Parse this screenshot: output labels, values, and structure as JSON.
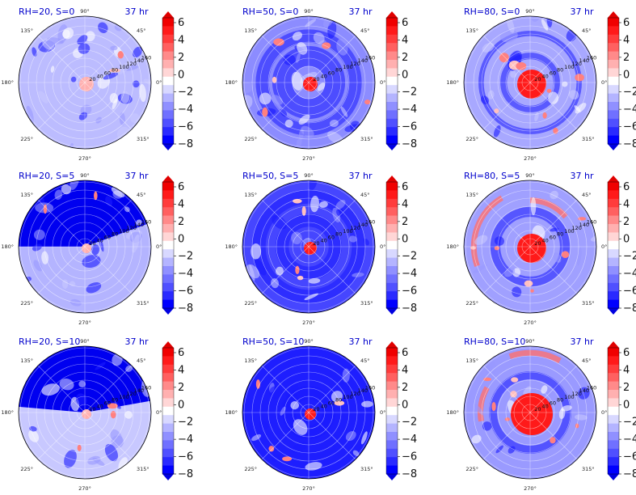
{
  "figure": {
    "time_label": "37 hr",
    "angle_labels": [
      "90°",
      "45°",
      "0°",
      "315°",
      "270°",
      "225°",
      "180°",
      "135°"
    ],
    "radial_ticks": [
      "20",
      "40",
      "60",
      "80",
      "100",
      "120",
      "140",
      "160"
    ]
  },
  "colorbar": {
    "ticks": [
      "6",
      "4",
      "2",
      "0",
      "−2",
      "−4",
      "−6",
      "−8"
    ],
    "colors": [
      "#0000ff",
      "#2a2aff",
      "#5050ff",
      "#7070ff",
      "#9090ff",
      "#b4b4ff",
      "#d8d8ff",
      "#ffffff",
      "#ffd6d6",
      "#ffb0b0",
      "#ff8a8a",
      "#ff6060",
      "#ff3c3c",
      "#ff1a1a",
      "#f00000"
    ]
  },
  "chart_data": [
    {
      "type": "heatmap",
      "title": "RH=20, S=0",
      "time": "37 hr",
      "theta_ticks_deg": [
        0,
        45,
        90,
        135,
        180,
        225,
        270,
        315
      ],
      "r_ticks": [
        20,
        40,
        60,
        80,
        100,
        120,
        140,
        160
      ],
      "cbar_range": [
        -8,
        7
      ],
      "pattern": "uniform light blue, weak center"
    },
    {
      "type": "heatmap",
      "title": "RH=50, S=0",
      "time": "37 hr",
      "theta_ticks_deg": [
        0,
        45,
        90,
        135,
        180,
        225,
        270,
        315
      ],
      "r_ticks": [
        20,
        40,
        60,
        80,
        100,
        120,
        140,
        160
      ],
      "cbar_range": [
        -8,
        7
      ],
      "pattern": "blue spiral, small red core"
    },
    {
      "type": "heatmap",
      "title": "RH=80, S=0",
      "time": "37 hr",
      "theta_ticks_deg": [
        0,
        45,
        90,
        135,
        180,
        225,
        270,
        315
      ],
      "r_ticks": [
        20,
        40,
        60,
        80,
        100,
        120,
        140,
        160
      ],
      "cbar_range": [
        -8,
        7
      ],
      "pattern": "strong red core, blue rings"
    },
    {
      "type": "heatmap",
      "title": "RH=20, S=5",
      "time": "37 hr",
      "theta_ticks_deg": [
        0,
        45,
        90,
        135,
        180,
        225,
        270,
        315
      ],
      "r_ticks": [
        20,
        40,
        60,
        80,
        100,
        120,
        140,
        160
      ],
      "cbar_range": [
        -8,
        7
      ],
      "pattern": "dark blue upper half, light lower"
    },
    {
      "type": "heatmap",
      "title": "RH=50, S=5",
      "time": "37 hr",
      "theta_ticks_deg": [
        0,
        45,
        90,
        135,
        180,
        225,
        270,
        315
      ],
      "r_ticks": [
        20,
        40,
        60,
        80,
        100,
        120,
        140,
        160
      ],
      "cbar_range": [
        -8,
        7
      ],
      "pattern": "dark blue spiral bands, small red core"
    },
    {
      "type": "heatmap",
      "title": "RH=80, S=5",
      "time": "37 hr",
      "theta_ticks_deg": [
        0,
        45,
        90,
        135,
        180,
        225,
        270,
        315
      ],
      "r_ticks": [
        20,
        40,
        60,
        80,
        100,
        120,
        140,
        160
      ],
      "cbar_range": [
        -8,
        7
      ],
      "pattern": "red core, red outer arcs"
    },
    {
      "type": "heatmap",
      "title": "RH=20, S=10",
      "time": "37 hr",
      "theta_ticks_deg": [
        0,
        45,
        90,
        135,
        180,
        225,
        270,
        315
      ],
      "r_ticks": [
        20,
        40,
        60,
        80,
        100,
        120,
        140,
        160
      ],
      "cbar_range": [
        -8,
        7
      ],
      "pattern": "dark blue top, light lower, red spot east"
    },
    {
      "type": "heatmap",
      "title": "RH=50, S=10",
      "time": "37 hr",
      "theta_ticks_deg": [
        0,
        45,
        90,
        135,
        180,
        225,
        270,
        315
      ],
      "r_ticks": [
        20,
        40,
        60,
        80,
        100,
        120,
        140,
        160
      ],
      "cbar_range": [
        -8,
        7
      ],
      "pattern": "mostly dark blue, small red spots"
    },
    {
      "type": "heatmap",
      "title": "RH=80, S=10",
      "time": "37 hr",
      "theta_ticks_deg": [
        0,
        45,
        90,
        135,
        180,
        225,
        270,
        315
      ],
      "r_ticks": [
        20,
        40,
        60,
        80,
        100,
        120,
        140,
        160
      ],
      "cbar_range": [
        -8,
        7
      ],
      "pattern": "large red core, red outer spots"
    }
  ]
}
